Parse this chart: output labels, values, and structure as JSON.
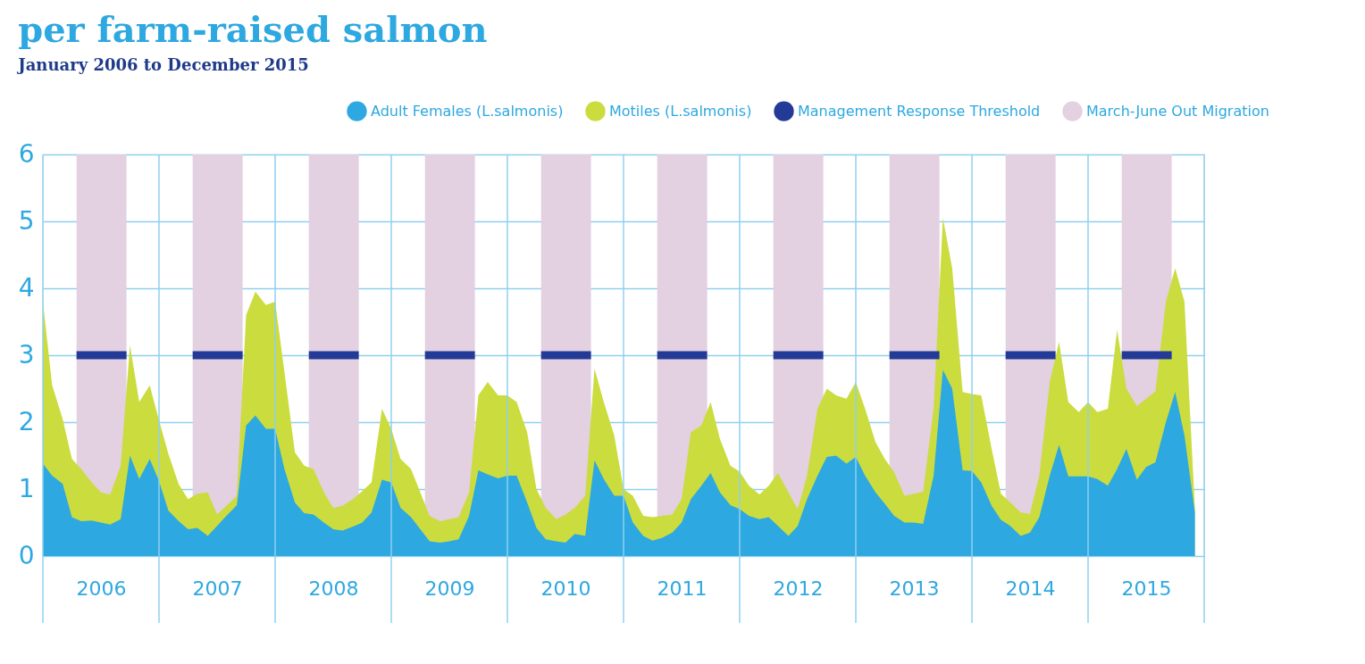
{
  "chart_data": {
    "type": "area",
    "title": "per farm-raised salmon",
    "subtitle": "January 2006 to December 2015",
    "x": [
      2006,
      2006.08,
      2006.17,
      2006.25,
      2006.33,
      2006.42,
      2006.5,
      2006.58,
      2006.67,
      2006.75,
      2006.83,
      2006.92,
      2007,
      2007.08,
      2007.17,
      2007.25,
      2007.33,
      2007.42,
      2007.5,
      2007.58,
      2007.67,
      2007.75,
      2007.83,
      2007.92,
      2008,
      2008.08,
      2008.17,
      2008.25,
      2008.33,
      2008.42,
      2008.5,
      2008.58,
      2008.67,
      2008.75,
      2008.83,
      2008.92,
      2009,
      2009.08,
      2009.17,
      2009.25,
      2009.33,
      2009.42,
      2009.5,
      2009.58,
      2009.67,
      2009.75,
      2009.83,
      2009.92,
      2010,
      2010.08,
      2010.17,
      2010.25,
      2010.33,
      2010.42,
      2010.5,
      2010.58,
      2010.67,
      2010.75,
      2010.83,
      2010.92,
      2011,
      2011.08,
      2011.17,
      2011.25,
      2011.33,
      2011.42,
      2011.5,
      2011.58,
      2011.67,
      2011.75,
      2011.83,
      2011.92,
      2012,
      2012.08,
      2012.17,
      2012.25,
      2012.33,
      2012.42,
      2012.5,
      2012.58,
      2012.67,
      2012.75,
      2012.83,
      2012.92,
      2013,
      2013.08,
      2013.17,
      2013.25,
      2013.33,
      2013.42,
      2013.5,
      2013.58,
      2013.67,
      2013.75,
      2013.83,
      2013.92,
      2014,
      2014.08,
      2014.17,
      2014.25,
      2014.33,
      2014.42,
      2014.5,
      2014.58,
      2014.67,
      2014.75,
      2014.83,
      2014.92,
      2015,
      2015.08,
      2015.17,
      2015.25,
      2015.33,
      2015.42,
      2015.5,
      2015.58,
      2015.67,
      2015.75,
      2015.83,
      2015.92
    ],
    "xlim": [
      2006,
      2016
    ],
    "xticks": [
      {
        "value": 2006,
        "label": null
      },
      {
        "value": 2006.5,
        "label": "2006"
      },
      {
        "value": 2007,
        "label": null
      },
      {
        "value": 2007.5,
        "label": "2007"
      },
      {
        "value": 2008,
        "label": null
      },
      {
        "value": 2008.5,
        "label": "2008"
      },
      {
        "value": 2009,
        "label": null
      },
      {
        "value": 2009.5,
        "label": "2009"
      },
      {
        "value": 2010,
        "label": null
      },
      {
        "value": 2010.5,
        "label": "2010"
      },
      {
        "value": 2011,
        "label": null
      },
      {
        "value": 2011.5,
        "label": "2011"
      },
      {
        "value": 2012,
        "label": null
      },
      {
        "value": 2012.5,
        "label": "2012"
      },
      {
        "value": 2013,
        "label": null
      },
      {
        "value": 2013.5,
        "label": "2013"
      },
      {
        "value": 2014,
        "label": null
      },
      {
        "value": 2014.5,
        "label": "2014"
      },
      {
        "value": 2015,
        "label": null
      },
      {
        "value": 2015.5,
        "label": "2015"
      },
      {
        "value": 2016,
        "label": null
      }
    ],
    "ylim": [
      0,
      6
    ],
    "yticks": [
      0,
      1,
      2,
      3,
      4,
      5,
      6
    ],
    "grid": true,
    "legend": "top right",
    "series": [
      {
        "name": "Adult Females (L.salmonis)",
        "color": "#2ea8e0",
        "values": [
          1.38,
          1.2,
          1.08,
          0.58,
          0.52,
          0.53,
          0.5,
          0.47,
          0.55,
          1.5,
          1.15,
          1.45,
          1.12,
          0.68,
          0.52,
          0.4,
          0.42,
          0.3,
          0.45,
          0.6,
          0.76,
          1.95,
          2.1,
          1.9,
          1.9,
          1.3,
          0.8,
          0.64,
          0.62,
          0.5,
          0.4,
          0.38,
          0.44,
          0.5,
          0.65,
          1.14,
          1.1,
          0.72,
          0.58,
          0.4,
          0.22,
          0.2,
          0.22,
          0.25,
          0.6,
          1.28,
          1.22,
          1.16,
          1.2,
          1.2,
          0.8,
          0.42,
          0.25,
          0.22,
          0.2,
          0.33,
          0.3,
          1.43,
          1.15,
          0.9,
          0.9,
          0.5,
          0.3,
          0.23,
          0.27,
          0.35,
          0.5,
          0.85,
          1.05,
          1.24,
          0.95,
          0.76,
          0.7,
          0.6,
          0.55,
          0.58,
          0.45,
          0.3,
          0.45,
          0.85,
          1.2,
          1.48,
          1.5,
          1.38,
          1.48,
          1.2,
          0.95,
          0.78,
          0.6,
          0.5,
          0.5,
          0.48,
          1.2,
          2.78,
          2.5,
          1.28,
          1.27,
          1.1,
          0.75,
          0.54,
          0.45,
          0.3,
          0.35,
          0.58,
          1.2,
          1.66,
          1.19,
          1.19,
          1.19,
          1.15,
          1.05,
          1.3,
          1.6,
          1.14,
          1.33,
          1.4,
          2.0,
          2.45,
          1.8,
          0.65
        ]
      },
      {
        "name": "Motiles (L.salmonis)",
        "color": "#cbdc3e",
        "values": [
          3.8,
          2.55,
          2.05,
          1.45,
          1.3,
          1.1,
          0.95,
          0.92,
          1.35,
          3.15,
          2.3,
          2.55,
          2.03,
          1.53,
          1.07,
          0.85,
          0.93,
          0.95,
          0.62,
          0.75,
          0.9,
          3.6,
          3.95,
          3.75,
          3.8,
          2.75,
          1.55,
          1.35,
          1.3,
          0.95,
          0.72,
          0.75,
          0.85,
          0.97,
          1.1,
          2.2,
          1.9,
          1.45,
          1.3,
          0.95,
          0.6,
          0.52,
          0.55,
          0.58,
          0.95,
          2.4,
          2.6,
          2.4,
          2.4,
          2.3,
          1.85,
          1.0,
          0.72,
          0.55,
          0.62,
          0.72,
          0.9,
          2.8,
          2.3,
          1.8,
          1.0,
          0.9,
          0.6,
          0.58,
          0.6,
          0.62,
          0.85,
          1.85,
          1.95,
          2.3,
          1.75,
          1.35,
          1.26,
          1.05,
          0.92,
          1.05,
          1.24,
          0.95,
          0.7,
          1.2,
          2.2,
          2.5,
          2.4,
          2.35,
          2.6,
          2.2,
          1.7,
          1.45,
          1.25,
          0.9,
          0.93,
          0.96,
          2.2,
          5.05,
          4.3,
          2.45,
          2.42,
          2.4,
          1.6,
          0.93,
          0.8,
          0.65,
          0.63,
          1.2,
          2.6,
          3.2,
          2.3,
          2.15,
          2.3,
          2.15,
          2.2,
          3.38,
          2.5,
          2.24,
          2.35,
          2.46,
          3.8,
          4.3,
          3.8,
          0.7
        ]
      },
      {
        "name": "Management Response Threshold",
        "type": "line",
        "color": "#233a96",
        "x": [
          2006.29,
          2006.72,
          2006.8,
          2007.29,
          2007.72,
          2007.8,
          2008.29,
          2008.72,
          2008.8,
          2009.29,
          2009.72,
          2009.8,
          2010.29,
          2010.72,
          2010.8,
          2011.29,
          2011.72,
          2011.8,
          2012.29,
          2012.72,
          2012.8,
          2013.29,
          2013.72,
          2013.8,
          2014.29,
          2014.72,
          2014.8,
          2015.29,
          2015.72
        ],
        "values": [
          3,
          3,
          null,
          3,
          3,
          null,
          3,
          3,
          null,
          3,
          3,
          null,
          3,
          3,
          null,
          3,
          3,
          null,
          3,
          3,
          null,
          3,
          3,
          null,
          3,
          3,
          null,
          3,
          3
        ]
      }
    ],
    "bands": [
      {
        "axis": "x",
        "from": 2006.29,
        "to": 2006.72,
        "label": "March-June Out Migration",
        "color": "#e3d0e1"
      },
      {
        "axis": "x",
        "from": 2007.29,
        "to": 2007.72,
        "color": "#e3d0e1"
      },
      {
        "axis": "x",
        "from": 2008.29,
        "to": 2008.72,
        "color": "#e3d0e1"
      },
      {
        "axis": "x",
        "from": 2009.29,
        "to": 2009.72,
        "color": "#e3d0e1"
      },
      {
        "axis": "x",
        "from": 2010.29,
        "to": 2010.72,
        "color": "#e3d0e1"
      },
      {
        "axis": "x",
        "from": 2011.29,
        "to": 2011.72,
        "color": "#e3d0e1"
      },
      {
        "axis": "x",
        "from": 2012.29,
        "to": 2012.72,
        "color": "#e3d0e1"
      },
      {
        "axis": "x",
        "from": 2013.29,
        "to": 2013.72,
        "color": "#e3d0e1"
      },
      {
        "axis": "x",
        "from": 2014.29,
        "to": 2014.72,
        "color": "#e3d0e1"
      },
      {
        "axis": "x",
        "from": 2015.29,
        "to": 2015.72,
        "color": "#e3d0e1"
      }
    ]
  }
}
